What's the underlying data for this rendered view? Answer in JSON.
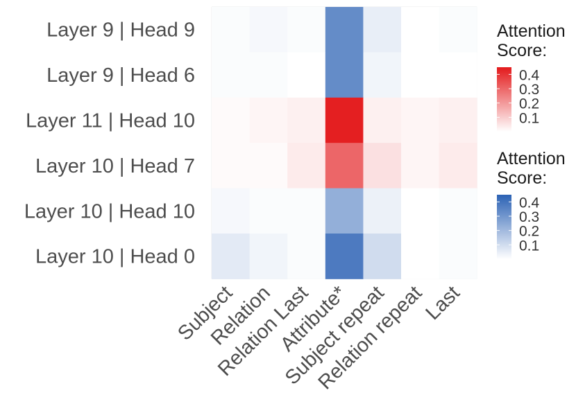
{
  "chart_data": {
    "type": "heatmap",
    "x_categories": [
      "Subject",
      "Relation",
      "Relation Last",
      "Attribute*",
      "Subject repeat",
      "Relation repeat",
      "Last"
    ],
    "y_categories": [
      "Layer 9 | Head 9",
      "Layer 9 | Head 6",
      "Layer 11 | Head 10",
      "Layer 10 | Head 7",
      "Layer 10 | Head 10",
      "Layer 10 | Head 0"
    ],
    "rows": [
      {
        "label": "Layer 9 | Head 9",
        "scale": "blue",
        "values": [
          0.01,
          0.02,
          0.01,
          0.33,
          0.05,
          0.0,
          0.01
        ]
      },
      {
        "label": "Layer 9 | Head 6",
        "scale": "blue",
        "values": [
          0.01,
          0.01,
          0.0,
          0.33,
          0.03,
          0.0,
          0.0
        ]
      },
      {
        "label": "Layer 11 | Head 10",
        "scale": "red",
        "values": [
          0.01,
          0.02,
          0.03,
          0.44,
          0.03,
          0.02,
          0.03
        ]
      },
      {
        "label": "Layer 10 | Head 7",
        "scale": "red",
        "values": [
          0.01,
          0.01,
          0.04,
          0.3,
          0.06,
          0.02,
          0.04
        ]
      },
      {
        "label": "Layer 10 | Head 10",
        "scale": "blue",
        "values": [
          0.02,
          0.01,
          0.01,
          0.23,
          0.04,
          0.0,
          0.01
        ]
      },
      {
        "label": "Layer 10 | Head 0",
        "scale": "blue",
        "values": [
          0.06,
          0.03,
          0.01,
          0.38,
          0.1,
          0.0,
          0.01
        ]
      }
    ],
    "legends": [
      {
        "title_line1": "Attention",
        "title_line2": "Score:",
        "scale": "red",
        "ticks": [
          "0.4",
          "0.3",
          "0.2",
          "0.1"
        ],
        "tick_values": [
          0.4,
          0.3,
          0.2,
          0.1
        ],
        "max_color": "#e31a1c",
        "min_color": "#ffffff"
      },
      {
        "title_line1": "Attention",
        "title_line2": "Score:",
        "scale": "blue",
        "ticks": [
          "0.4",
          "0.3",
          "0.2",
          "0.1"
        ],
        "tick_values": [
          0.4,
          0.3,
          0.2,
          0.1
        ],
        "max_color": "#2c62b4",
        "min_color": "#ffffff"
      }
    ],
    "scale_range": [
      0,
      0.45
    ],
    "legend_position": "right",
    "grid": true,
    "title": "",
    "xlabel": "",
    "ylabel": ""
  }
}
